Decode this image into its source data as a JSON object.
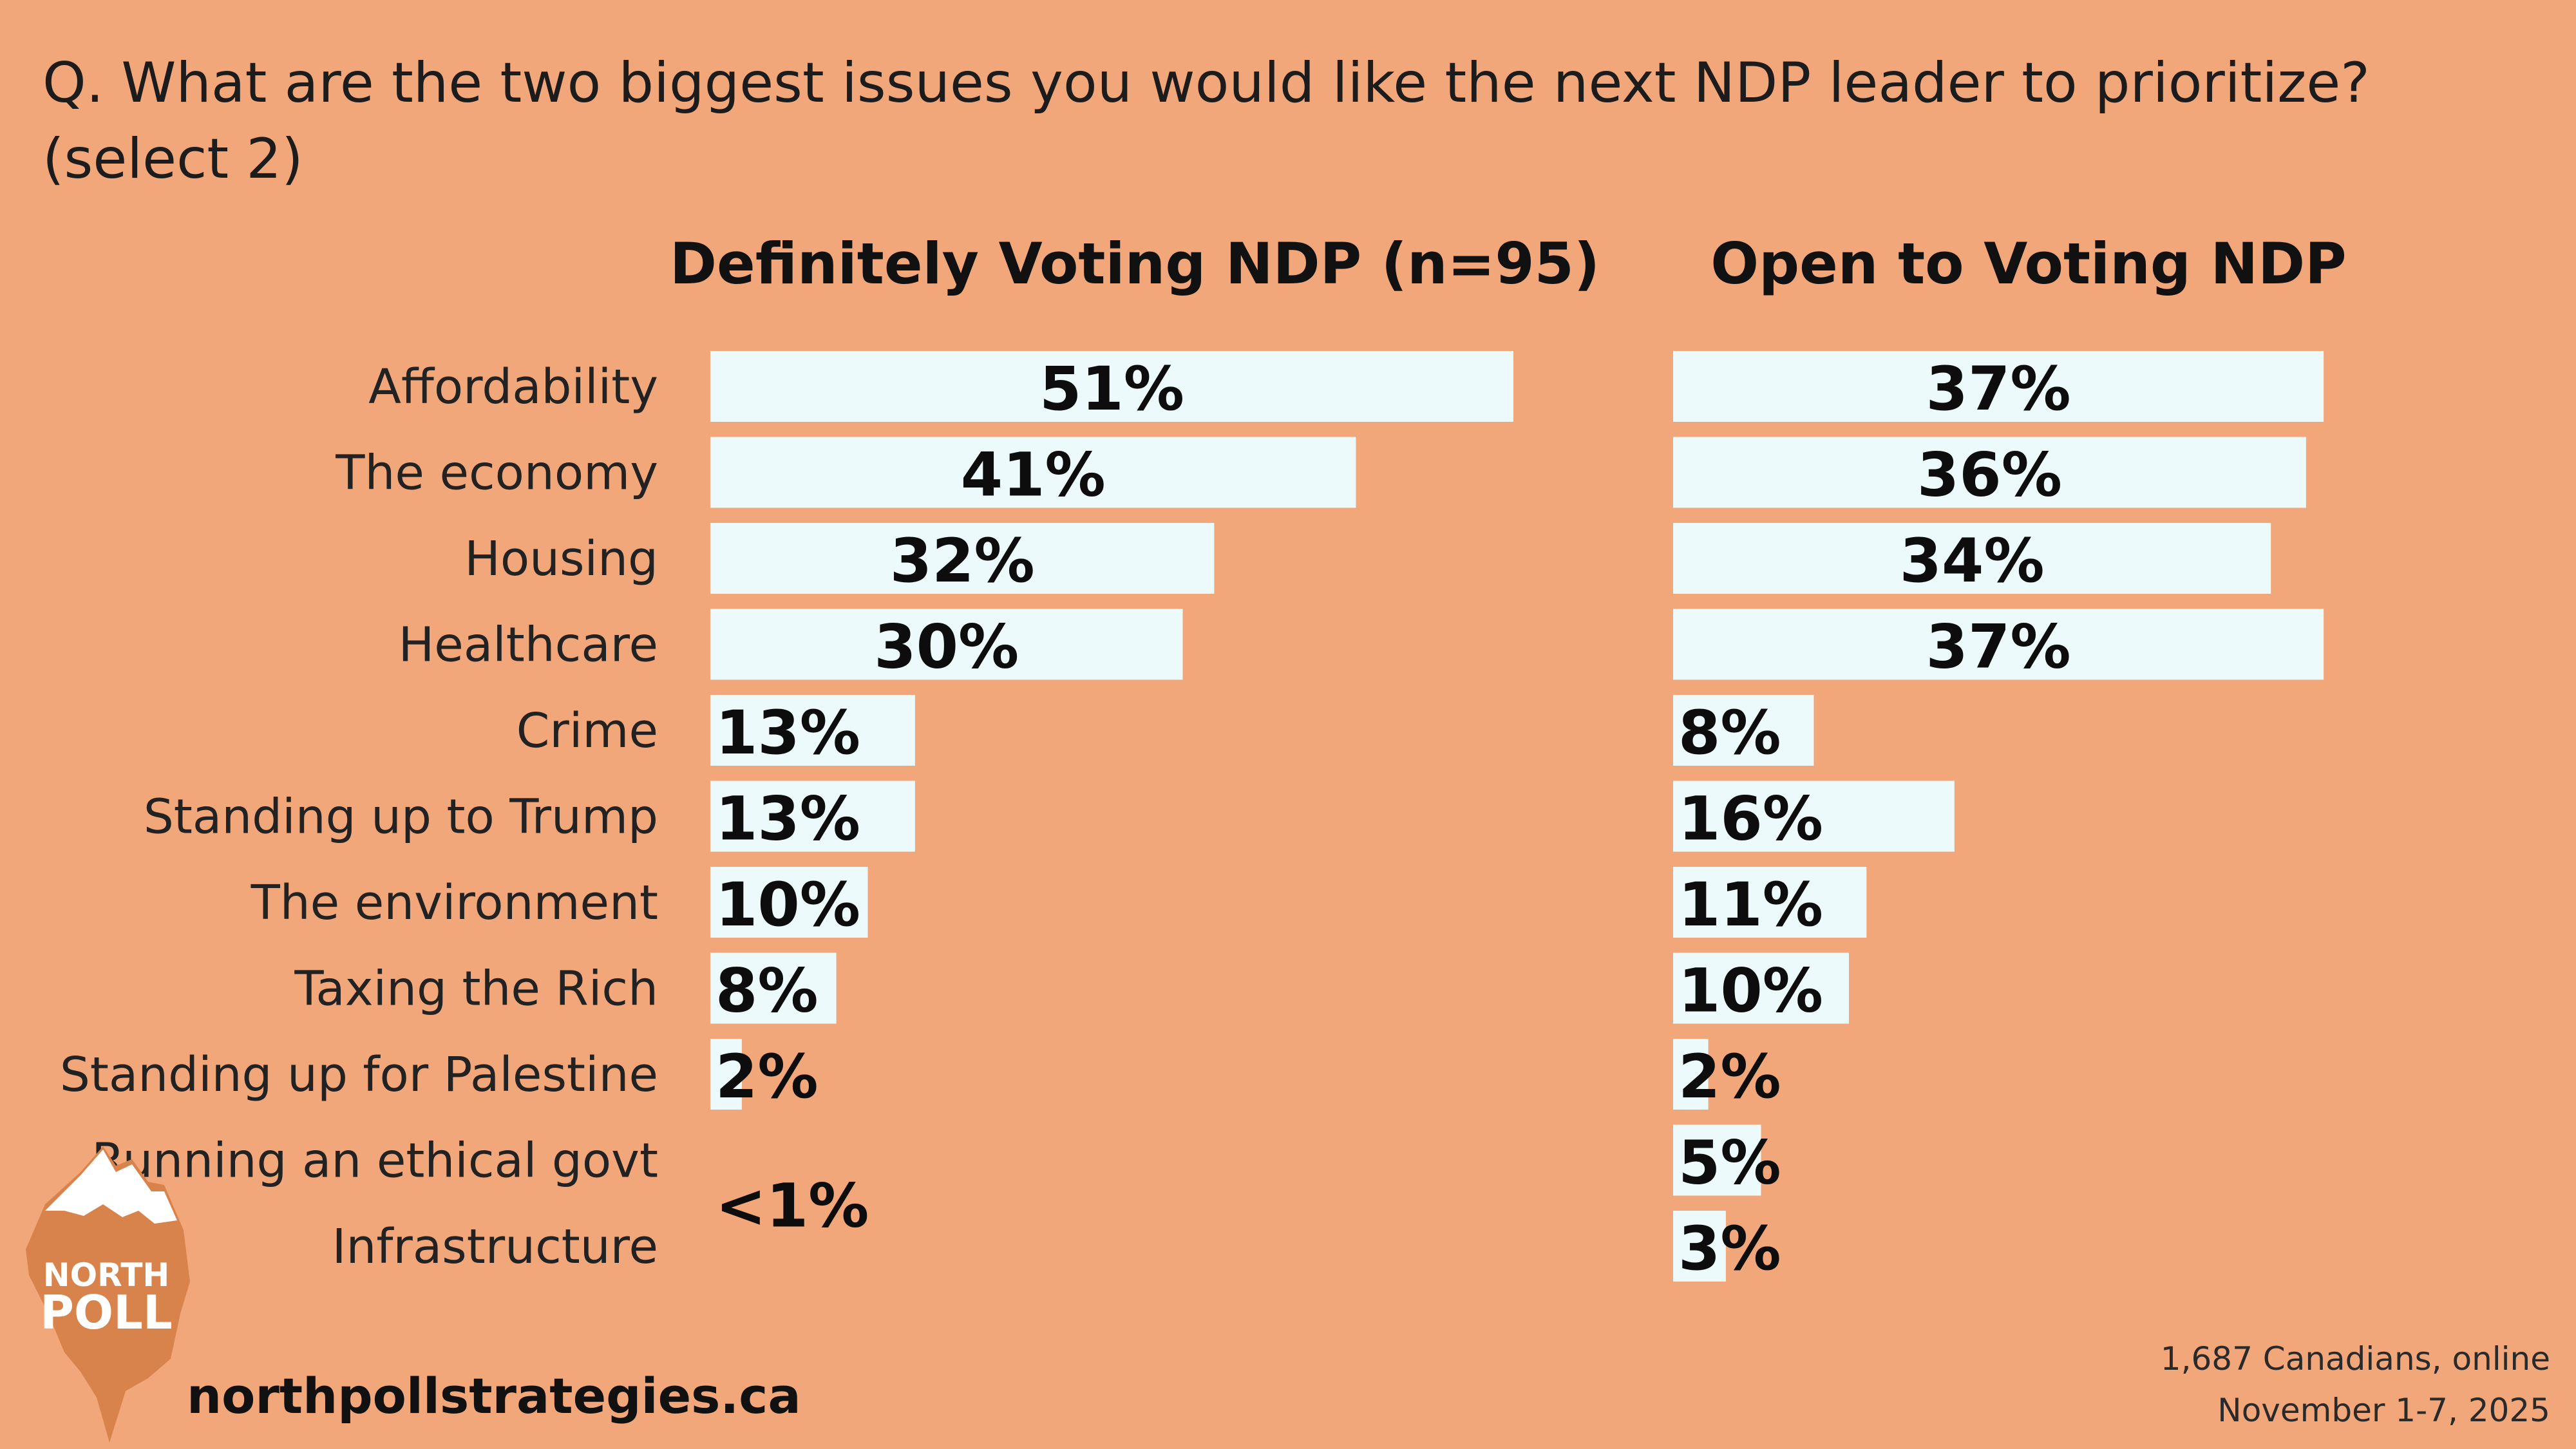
{
  "question": "Q. What are the two biggest issues you would like the next NDP leader to prioritize? (select 2)",
  "footer": {
    "website": "northpollstrategies.ca",
    "source_line1": "1,687 Canadians, online",
    "source_line2": "November 1-7, 2025"
  },
  "logo": {
    "line1": "NORTH",
    "line2": "POLL"
  },
  "colors": {
    "background": "#F2A77A",
    "bar": "#ECFAFB",
    "logo": "#D9834C"
  },
  "chart_data": [
    {
      "type": "bar",
      "orientation": "horizontal",
      "title": "Definitely Voting NDP (n=95)",
      "categories": [
        "Affordability",
        "The economy",
        "Housing",
        "Healthcare",
        "Crime",
        "Standing up to Trump",
        "The environment",
        "Taxing the Rich",
        "Standing up for Palestine",
        "Running an ethical govt",
        "Infrastructure"
      ],
      "values": [
        51,
        41,
        32,
        30,
        13,
        13,
        10,
        8,
        2,
        0.5,
        0.5
      ],
      "value_labels": [
        "51%",
        "41%",
        "32%",
        "30%",
        "13%",
        "13%",
        "10%",
        "8%",
        "2%",
        "",
        ""
      ],
      "combined_label": {
        "categories": [
          "Running an ethical govt",
          "Infrastructure"
        ],
        "label": "<1%"
      },
      "unit": "%"
    },
    {
      "type": "bar",
      "orientation": "horizontal",
      "title": "Open to Voting NDP",
      "categories": [
        "Affordability",
        "The economy",
        "Housing",
        "Healthcare",
        "Crime",
        "Standing up to Trump",
        "The environment",
        "Taxing the Rich",
        "Standing up for Palestine",
        "Running an ethical govt",
        "Infrastructure"
      ],
      "values": [
        37,
        36,
        34,
        37,
        8,
        16,
        11,
        10,
        2,
        5,
        3
      ],
      "value_labels": [
        "37%",
        "36%",
        "34%",
        "37%",
        "8%",
        "16%",
        "11%",
        "10%",
        "2%",
        "5%",
        "3%"
      ],
      "unit": "%"
    }
  ]
}
